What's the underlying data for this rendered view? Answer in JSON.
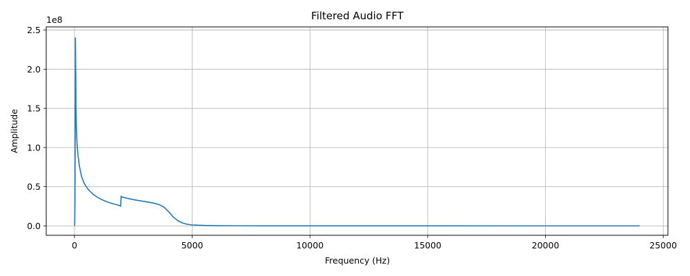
{
  "chart_data": {
    "type": "line",
    "title": "Filtered Audio FFT",
    "xlabel": "Frequency (Hz)",
    "ylabel": "Amplitude",
    "y_multiplier_label": "1e8",
    "xlim": [
      -1200,
      25200
    ],
    "ylim": [
      -12000000,
      254000000
    ],
    "xticks": [
      0,
      5000,
      10000,
      15000,
      20000,
      25000
    ],
    "xtick_labels": [
      "0",
      "5000",
      "10000",
      "15000",
      "20000",
      "25000"
    ],
    "yticks": [
      0,
      50000000,
      100000000,
      150000000,
      200000000,
      250000000
    ],
    "ytick_labels": [
      "0.0",
      "0.5",
      "1.0",
      "1.5",
      "2.0",
      "2.5"
    ],
    "grid": true,
    "line_color": "#1f77b4",
    "series": [
      {
        "x": [
          0,
          5,
          10,
          20,
          30,
          40,
          50,
          55,
          60,
          70,
          80,
          100,
          120,
          150,
          200,
          250,
          300,
          400,
          500,
          600,
          800,
          1000,
          1200,
          1400,
          1600,
          1800,
          1950,
          1960,
          1980,
          2000,
          2200,
          2500,
          2800,
          3000,
          3200,
          3400,
          3600,
          3800,
          4000,
          4200,
          4400,
          4600,
          4800,
          5000,
          5500,
          6000,
          7000,
          8000,
          10000,
          15000,
          20000,
          24000
        ],
        "y": [
          0,
          1000000,
          5000000,
          30000000,
          120000000,
          240000000,
          205000000,
          190000000,
          155000000,
          140000000,
          125000000,
          110000000,
          100000000,
          90000000,
          78000000,
          70000000,
          63000000,
          55000000,
          50000000,
          46000000,
          40000000,
          36000000,
          33000000,
          30500000,
          28500000,
          27000000,
          25500000,
          25000000,
          38000000,
          37000000,
          35500000,
          33500000,
          32000000,
          31000000,
          30000000,
          28800000,
          27000000,
          24000000,
          18000000,
          11000000,
          6500000,
          3500000,
          2000000,
          1200000,
          600000,
          300000,
          100000,
          50000,
          20000,
          10000,
          5000,
          0
        ]
      }
    ]
  }
}
